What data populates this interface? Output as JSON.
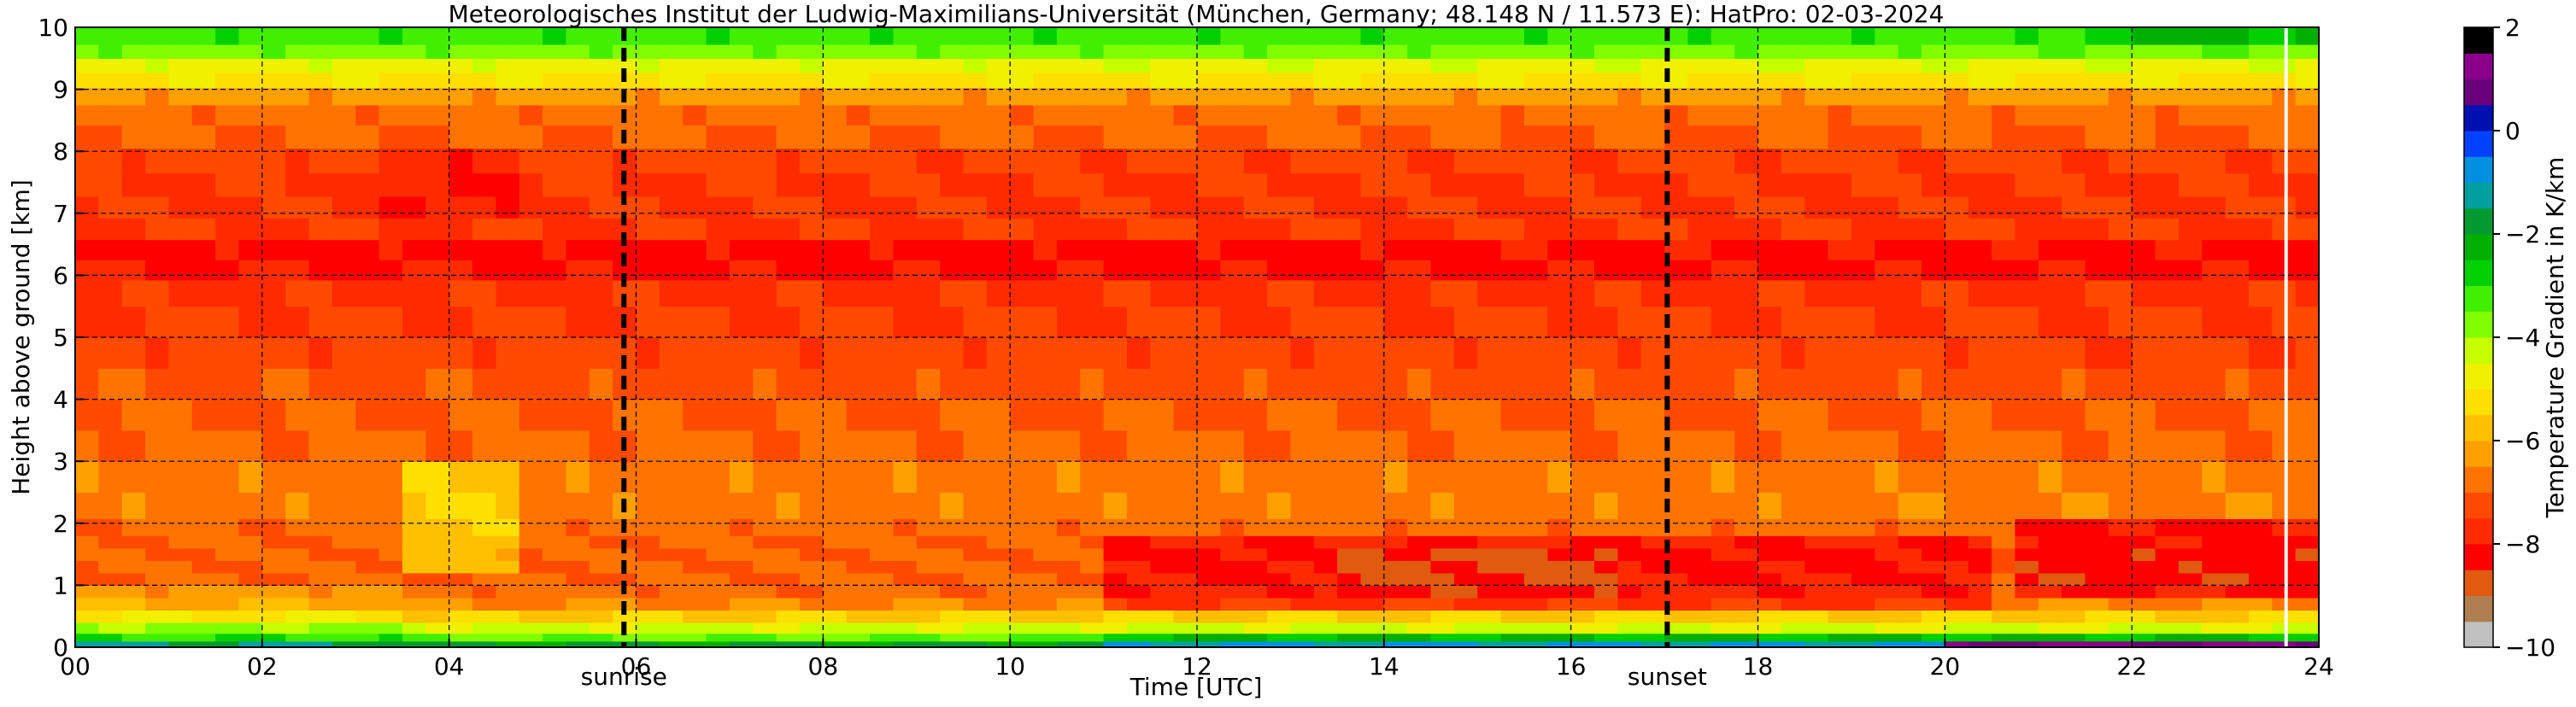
{
  "chart_data": {
    "type": "heatmap",
    "title": "Meteorologisches Institut der Ludwig-Maximilians-Universität (München, Germany; 48.148 N / 11.573 E):    HatPro: 02-03-2024",
    "xlabel": "Time [UTC]",
    "ylabel": "Height above ground [km]",
    "xlim": [
      0,
      24
    ],
    "ylim": [
      0,
      10
    ],
    "x_ticks": [
      0,
      2,
      4,
      6,
      8,
      10,
      12,
      14,
      16,
      18,
      20,
      22,
      24
    ],
    "x_tick_labels": [
      "00",
      "02",
      "04",
      "06",
      "08",
      "10",
      "12",
      "14",
      "16",
      "18",
      "20",
      "22",
      "24"
    ],
    "y_ticks": [
      0,
      1,
      2,
      3,
      4,
      5,
      6,
      7,
      8,
      9,
      10
    ],
    "y_tick_labels": [
      "0",
      "1",
      "2",
      "3",
      "4",
      "5",
      "6",
      "7",
      "8",
      "9",
      "10"
    ],
    "grid": true,
    "colorbar": {
      "label": "Temperature Gradient in K/km",
      "range": [
        -10,
        2
      ],
      "ticks": [
        -10,
        -8,
        -6,
        -4,
        -2,
        0,
        2
      ],
      "tick_labels": [
        "−10",
        "−8",
        "−6",
        "−4",
        "−2",
        "0",
        "2"
      ],
      "colors": [
        "#c0c0c0",
        "#b07f4f",
        "#e05a10",
        "#ff0000",
        "#ff2b00",
        "#ff4a00",
        "#ff7400",
        "#ffa000",
        "#ffc000",
        "#ffe000",
        "#f0f000",
        "#c8ff00",
        "#80ff00",
        "#40f000",
        "#00d000",
        "#00b000",
        "#009a30",
        "#00a0a0",
        "#0090e0",
        "#0040ff",
        "#0010b0",
        "#6b007b",
        "#8a008a",
        "#000000"
      ]
    },
    "annotations": [
      {
        "text": "sunrise",
        "x": 5.87
      },
      {
        "text": "sunset",
        "x": 17.03
      }
    ],
    "heights_km": [
      0.05,
      0.15,
      0.3,
      0.5,
      0.7,
      0.9,
      1.1,
      1.3,
      1.5,
      1.7,
      1.9,
      2.25,
      2.75,
      3.25,
      3.75,
      4.25,
      4.75,
      5.25,
      5.75,
      6.1,
      6.4,
      6.75,
      7.1,
      7.45,
      7.85,
      8.25,
      8.6,
      8.9,
      9.15,
      9.4,
      9.6,
      9.85
    ],
    "profile_gradient_k_per_km": [
      -2,
      -3.5,
      -4.4,
      -5.5,
      -6.5,
      -6.8,
      -7,
      -7,
      -7,
      -6.9,
      -6.8,
      -6.7,
      -6.7,
      -6.8,
      -7,
      -7.2,
      -7.3,
      -7.4,
      -7.6,
      -8.1,
      -8.2,
      -7.6,
      -7.5,
      -7.5,
      -7.3,
      -7,
      -6.8,
      -6.3,
      -5.2,
      -4.7,
      -3.7,
      -3.2
    ],
    "time_modifiers": [
      {
        "t0": 0,
        "t1": 3.4,
        "h0": 0,
        "h1": 1.0,
        "delta": 0.5
      },
      {
        "t0": 3.4,
        "t1": 4.7,
        "h0": 1.2,
        "h1": 3.2,
        "delta": 1.2
      },
      {
        "t0": 3.3,
        "t1": 4.8,
        "h0": 7.0,
        "h1": 8.0,
        "delta": -0.5
      },
      {
        "t0": 11.0,
        "t1": 20.5,
        "h0": 0.7,
        "h1": 1.7,
        "delta": -1.1
      },
      {
        "t0": 13.5,
        "t1": 16.5,
        "h0": 0.8,
        "h1": 1.6,
        "delta": -0.5
      },
      {
        "t0": 20.8,
        "t1": 24,
        "h0": 0.9,
        "h1": 2.0,
        "delta": -1.3
      },
      {
        "t0": 11.0,
        "t1": 24,
        "h0": 0.0,
        "h1": 0.2,
        "delta": 1.0
      },
      {
        "t0": 20.0,
        "t1": 24,
        "h0": 0.0,
        "h1": 0.12,
        "delta": 2.0
      },
      {
        "t0": 21.5,
        "t1": 24,
        "h0": 9.7,
        "h1": 10,
        "delta": 0.8
      }
    ],
    "data_gap_time": 23.65
  }
}
